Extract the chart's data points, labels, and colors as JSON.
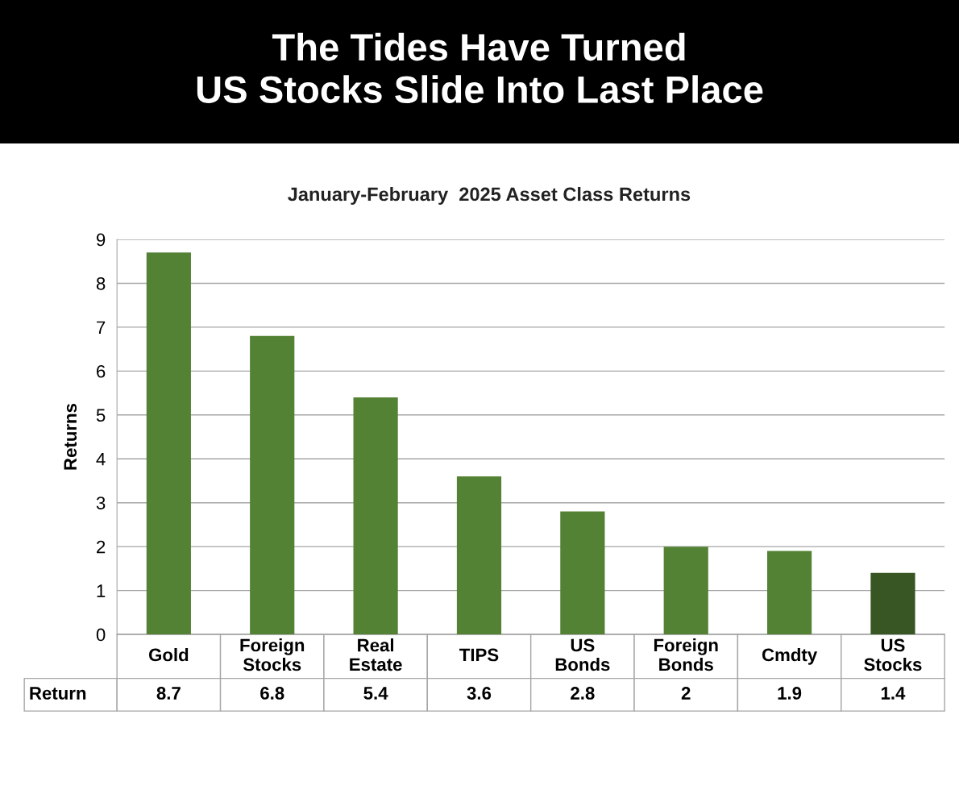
{
  "chart_data": {
    "type": "bar",
    "title": "The Tides Have Turned\nUS Stocks Slide Into Last Place",
    "subtitle": "January-February  2025 Asset Class Returns",
    "ylabel": "Returns",
    "categories": [
      "Gold",
      "Foreign\nStocks",
      "Real\nEstate",
      "TIPS",
      "US\nBonds",
      "Foreign\nBonds",
      "Cmdty",
      "US\nStocks"
    ],
    "values": [
      8.7,
      6.8,
      5.4,
      3.6,
      2.8,
      2,
      1.9,
      1.4
    ],
    "colors": [
      "#548235",
      "#548235",
      "#548235",
      "#548235",
      "#548235",
      "#548235",
      "#548235",
      "#375623"
    ],
    "ylim": [
      0,
      9
    ],
    "yticks": [
      0,
      1,
      2,
      3,
      4,
      5,
      6,
      7,
      8,
      9
    ],
    "grid": "y",
    "data_labels": true,
    "tick_labels": "y",
    "annotations": [
      "Return"
    ]
  }
}
